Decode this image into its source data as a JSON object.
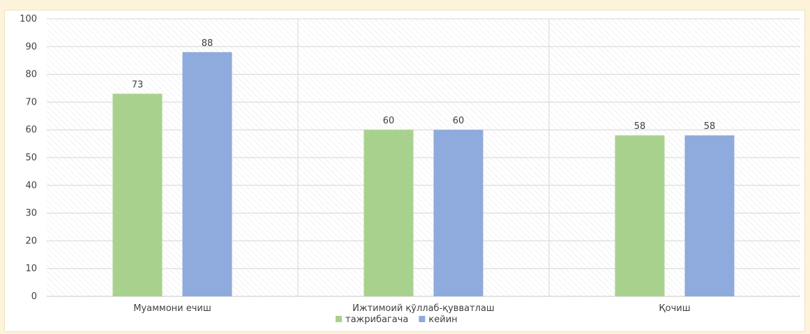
{
  "chart_data": {
    "type": "bar",
    "categories": [
      "Муаммони ечиш",
      "Ижтимоий қўллаб-қувватлаш",
      "Қочиш"
    ],
    "series": [
      {
        "name": "тажрибагача",
        "values": [
          73,
          60,
          58
        ],
        "color": "#a9d18e"
      },
      {
        "name": "кейин",
        "values": [
          88,
          60,
          58
        ],
        "color": "#8faadc"
      }
    ],
    "ylim": [
      0,
      100
    ],
    "yticks": [
      "0",
      "10",
      "20",
      "30",
      "40",
      "50",
      "60",
      "70",
      "80",
      "90",
      "100"
    ],
    "grid": true,
    "legend": "bottom"
  }
}
